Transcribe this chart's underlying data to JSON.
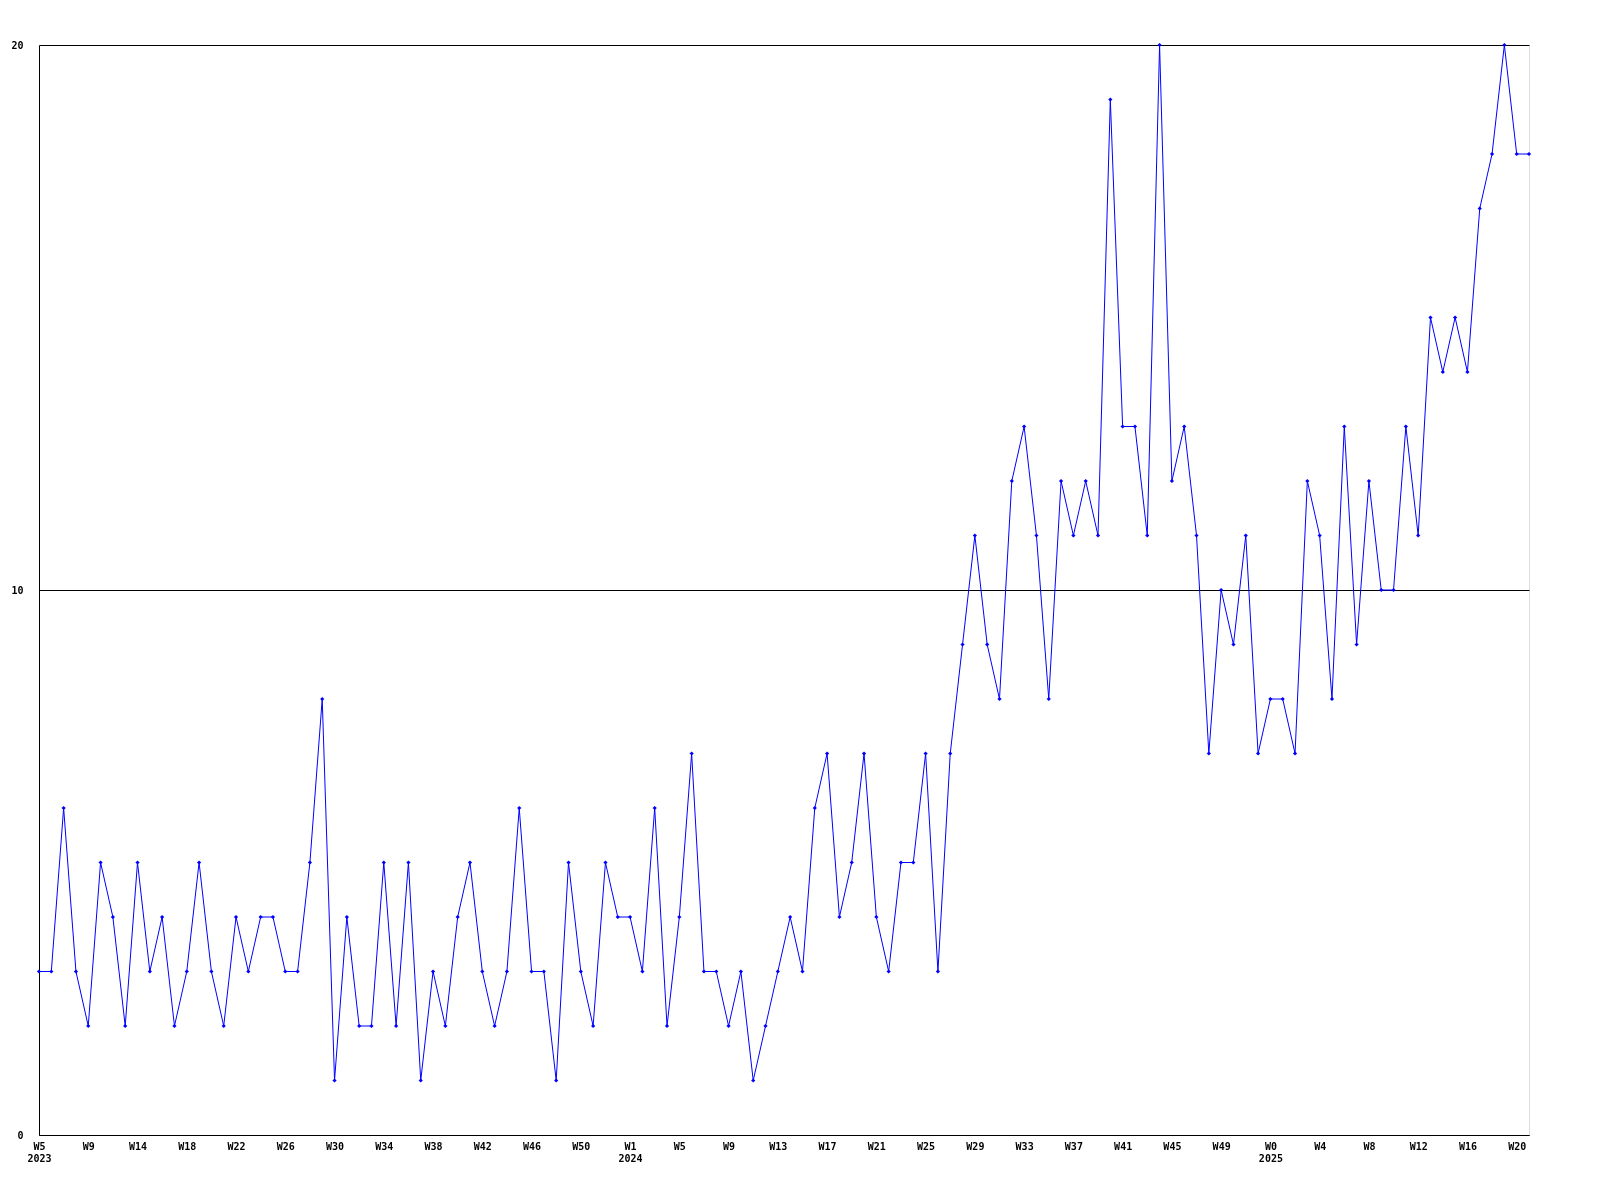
{
  "chart_data": {
    "type": "line",
    "categories": [
      "W5\n2023",
      null,
      null,
      null,
      "W9",
      null,
      null,
      null,
      "W14",
      null,
      null,
      null,
      "W18",
      null,
      null,
      null,
      "W22",
      null,
      null,
      null,
      "W26",
      null,
      null,
      null,
      "W30",
      null,
      null,
      null,
      "W34",
      null,
      null,
      null,
      "W38",
      null,
      null,
      null,
      "W42",
      null,
      null,
      null,
      "W46",
      null,
      null,
      null,
      "W50",
      null,
      null,
      null,
      "W1\n2024",
      null,
      null,
      null,
      "W5",
      null,
      null,
      null,
      "W9",
      null,
      null,
      null,
      "W13",
      null,
      null,
      null,
      "W17",
      null,
      null,
      null,
      "W21",
      null,
      null,
      null,
      "W25",
      null,
      null,
      null,
      "W29",
      null,
      null,
      null,
      "W33",
      null,
      null,
      null,
      "W37",
      null,
      null,
      null,
      "W41",
      null,
      null,
      null,
      "W45",
      null,
      null,
      null,
      "W49",
      null,
      null,
      null,
      "W0\n2025",
      null,
      null,
      null,
      "W4",
      null,
      null,
      null,
      "W8",
      null,
      null,
      null,
      "W12",
      null,
      null,
      null,
      "W16",
      null,
      null,
      null,
      "W20",
      null
    ],
    "series": [
      {
        "color": "#0000ff",
        "values": [
          3,
          3,
          6,
          3,
          2,
          5,
          4,
          2,
          5,
          3,
          4,
          2,
          3,
          5,
          3,
          2,
          4,
          3,
          4,
          4,
          3,
          3,
          5,
          8,
          1,
          4,
          2,
          2,
          5,
          2,
          5,
          1,
          3,
          2,
          4,
          5,
          3,
          2,
          3,
          6,
          3,
          3,
          1,
          5,
          3,
          2,
          5,
          4,
          4,
          3,
          6,
          2,
          4,
          7,
          3,
          3,
          2,
          3,
          1,
          2,
          3,
          4,
          3,
          6,
          7,
          4,
          5,
          7,
          4,
          3,
          5,
          5,
          7,
          3,
          7,
          9,
          11,
          9,
          8,
          12,
          13,
          11,
          8,
          12,
          11,
          12,
          11,
          19,
          13,
          13,
          11,
          20,
          12,
          13,
          11,
          7,
          10,
          9,
          11,
          7,
          8,
          8,
          7,
          12,
          11,
          8,
          13,
          9,
          12,
          10,
          10,
          13,
          11,
          15,
          14,
          15,
          14,
          17,
          18,
          20,
          18,
          18
        ]
      }
    ],
    "ylim": [
      0,
      20
    ],
    "yticks": [
      0,
      10,
      20
    ],
    "grid": "y",
    "marker": "diamond",
    "line_style": "solid"
  }
}
